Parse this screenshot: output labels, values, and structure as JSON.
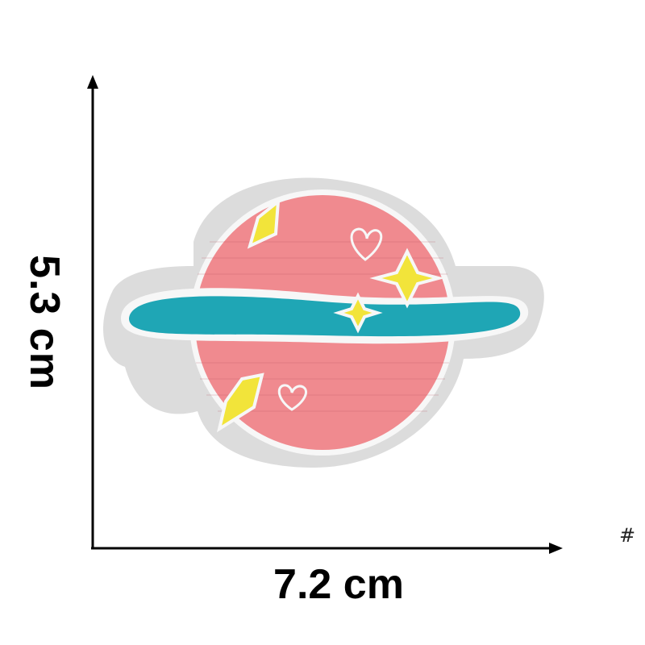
{
  "dimensions": {
    "height_label": "5.3 cm",
    "width_label": "7.2 cm"
  },
  "corner_mark": "#",
  "colors": {
    "border": "#dcdcdc",
    "planet": "#f08a8f",
    "ring": "#1fa6b5",
    "stars": "#f2e43a",
    "stitch": "#f7f7f7",
    "axis": "#000000"
  },
  "decorations": [
    "sparkle-icon",
    "heart-icon"
  ]
}
